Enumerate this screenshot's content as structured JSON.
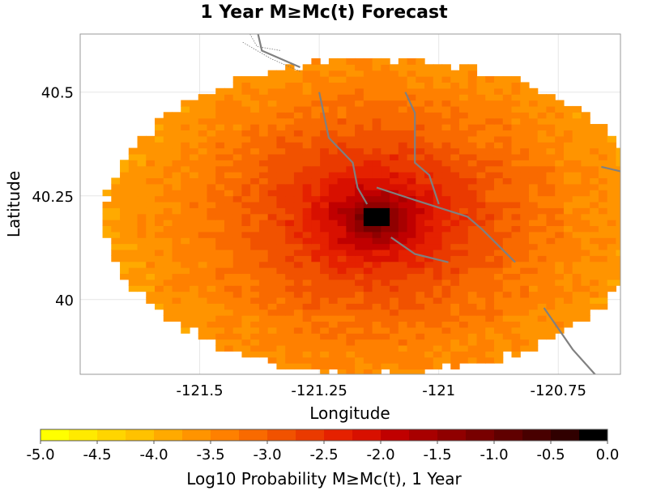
{
  "chart_data": {
    "type": "heatmap",
    "title": "1 Year M≥Mc(t) Forecast",
    "xlabel": "Longitude",
    "ylabel": "Latitude",
    "xlim": [
      -121.75,
      -120.62
    ],
    "ylim": [
      39.82,
      40.64
    ],
    "xticks": [
      {
        "value": -121.5,
        "label": "-121.5"
      },
      {
        "value": -121.25,
        "label": "-121.25"
      },
      {
        "value": -121.0,
        "label": "-121"
      },
      {
        "value": -120.75,
        "label": "-120.75"
      }
    ],
    "yticks": [
      {
        "value": 40.5,
        "label": "40.5"
      },
      {
        "value": 40.25,
        "label": "40.25"
      },
      {
        "value": 40.0,
        "label": "40"
      }
    ],
    "grid": true,
    "heat_field": {
      "center": [
        -121.13,
        40.2
      ],
      "region_radius_deg": [
        0.57,
        0.38
      ],
      "peak_value": 0.0,
      "edge_value": -3.9,
      "cell_deg": [
        0.0182,
        0.0144
      ]
    },
    "fault_traces": [
      [
        [
          -121.38,
          40.65
        ],
        [
          -121.37,
          40.6
        ],
        [
          -121.33,
          40.58
        ],
        [
          -121.29,
          40.56
        ]
      ],
      [
        [
          -121.25,
          40.5
        ],
        [
          -121.23,
          40.39
        ],
        [
          -121.18,
          40.33
        ],
        [
          -121.17,
          40.27
        ],
        [
          -121.15,
          40.23
        ]
      ],
      [
        [
          -121.07,
          40.5
        ],
        [
          -121.05,
          40.45
        ],
        [
          -121.05,
          40.33
        ],
        [
          -121.02,
          40.3
        ],
        [
          -121.0,
          40.23
        ]
      ],
      [
        [
          -121.13,
          40.27
        ],
        [
          -121.05,
          40.24
        ],
        [
          -120.94,
          40.2
        ],
        [
          -120.91,
          40.17
        ],
        [
          -120.84,
          40.09
        ]
      ],
      [
        [
          -121.1,
          40.15
        ],
        [
          -121.05,
          40.11
        ],
        [
          -120.98,
          40.09
        ]
      ],
      [
        [
          -120.66,
          40.32
        ],
        [
          -120.55,
          40.29
        ]
      ],
      [
        [
          -120.78,
          39.98
        ],
        [
          -120.72,
          39.88
        ],
        [
          -120.65,
          39.79
        ]
      ]
    ],
    "boundaries": [
      [
        [
          -121.4,
          40.65
        ],
        [
          -121.38,
          40.61
        ],
        [
          -121.33,
          40.6
        ]
      ],
      [
        [
          -121.41,
          40.62
        ],
        [
          -121.35,
          40.58
        ],
        [
          -121.29,
          40.55
        ]
      ]
    ],
    "colorbar": {
      "label": "Log10 Probability M≥Mc(t), 1 Year",
      "min": -5.0,
      "max": 0.0,
      "steps": 20,
      "ticks": [
        {
          "value": -5.0,
          "label": "-5.0"
        },
        {
          "value": -4.5,
          "label": "-4.5"
        },
        {
          "value": -4.0,
          "label": "-4.0"
        },
        {
          "value": -3.5,
          "label": "-3.5"
        },
        {
          "value": -3.0,
          "label": "-3.0"
        },
        {
          "value": -2.5,
          "label": "-2.5"
        },
        {
          "value": -2.0,
          "label": "-2.0"
        },
        {
          "value": -1.5,
          "label": "-1.5"
        },
        {
          "value": -1.0,
          "label": "-1.0"
        },
        {
          "value": -0.5,
          "label": "-0.5"
        },
        {
          "value": 0.0,
          "label": "0.0"
        }
      ],
      "colors": [
        "#ffff00",
        "#ffea00",
        "#ffd500",
        "#ffc200",
        "#ffaa00",
        "#ff9400",
        "#ff8000",
        "#f96a00",
        "#f15200",
        "#ea3a00",
        "#e52100",
        "#d81000",
        "#c00000",
        "#a80000",
        "#900000",
        "#780000",
        "#600000",
        "#480000",
        "#300000",
        "#000000"
      ]
    }
  }
}
